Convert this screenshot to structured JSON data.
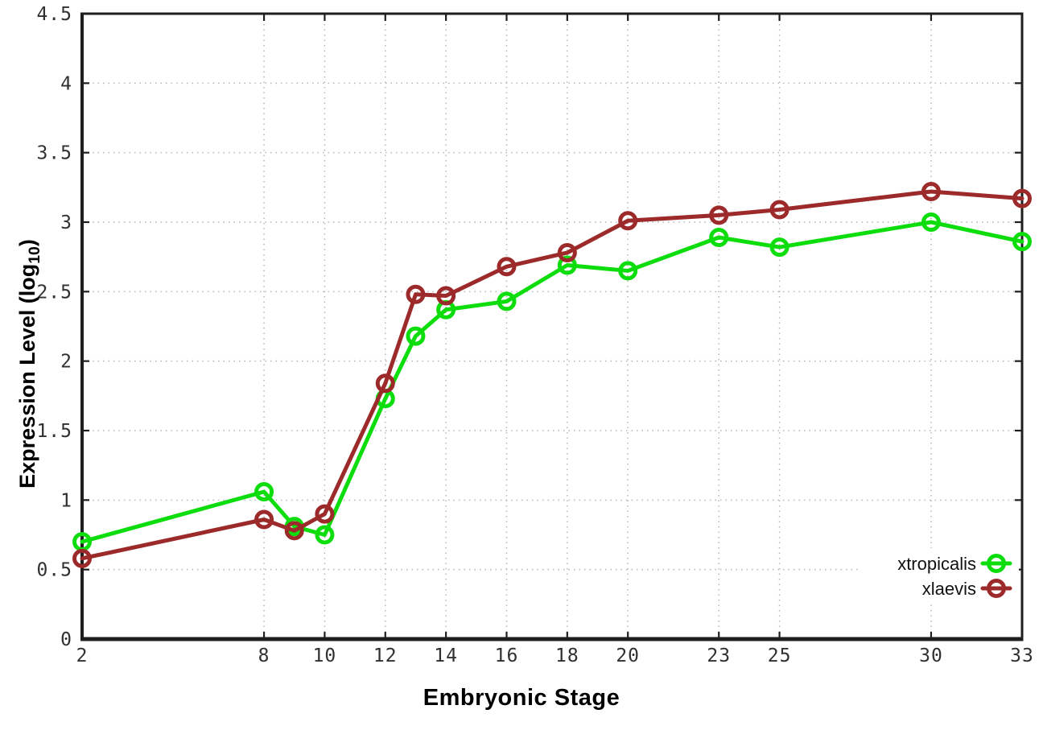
{
  "chart_data": {
    "type": "line",
    "title": "",
    "xlabel": "Embryonic Stage",
    "ylabel_base": "Expression Level (log",
    "ylabel_sub": "10",
    "ylabel_close": ")",
    "x": [
      2,
      8,
      9,
      10,
      12,
      13,
      14,
      16,
      18,
      20,
      23,
      25,
      30,
      33
    ],
    "series": [
      {
        "name": "xtropicalis",
        "color": "#0ddd0d",
        "values": [
          0.7,
          1.06,
          0.81,
          0.75,
          1.73,
          2.18,
          2.37,
          2.43,
          2.69,
          2.65,
          2.89,
          2.82,
          3.0,
          2.86
        ]
      },
      {
        "name": "xlaevis",
        "color": "#9c2a2a",
        "values": [
          0.58,
          0.86,
          0.78,
          0.9,
          1.84,
          2.48,
          2.47,
          2.68,
          2.78,
          3.01,
          3.05,
          3.09,
          3.22,
          3.17
        ]
      }
    ],
    "xticks": [
      2,
      8,
      10,
      12,
      14,
      16,
      18,
      20,
      23,
      25,
      30,
      33
    ],
    "yticks": [
      0,
      0.5,
      1,
      1.5,
      2,
      2.5,
      3,
      3.5,
      4,
      4.5
    ],
    "xlim": [
      2,
      33
    ],
    "ylim": [
      0,
      4.5
    ],
    "grid": true,
    "legend_position": "bottom-right-inside"
  },
  "style": {
    "green_series": "#0ddd0d",
    "brown_series": "#9c2a2a",
    "grid_color": "#b5b5b5",
    "axis_color": "#1e1e1e",
    "tick_label_color": "#303030",
    "legend_text_color": "#111111",
    "background": "#ffffff"
  }
}
